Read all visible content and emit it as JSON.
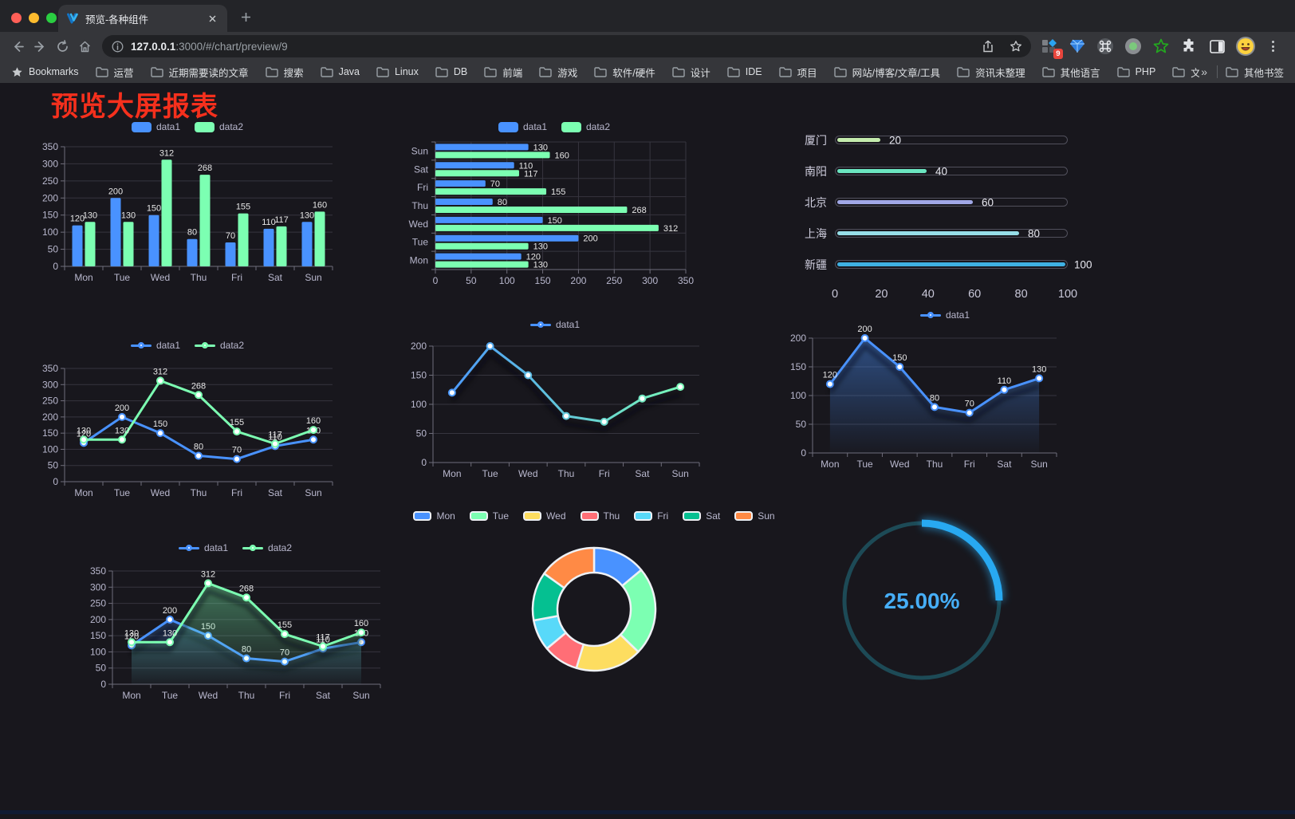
{
  "browser": {
    "tab_title": "预览-各种组件",
    "url_host": "127.0.0.1",
    "url_rest": ":3000/#/chart/preview/9",
    "extension_badge": "9",
    "bookmarks_label": "Bookmarks",
    "bookmarks": [
      "运营",
      "近期需要读的文章",
      "搜索",
      "Java",
      "Linux",
      "DB",
      "前端",
      "游戏",
      "软件/硬件",
      "设计",
      "IDE",
      "项目",
      "网站/博客/文章/工具",
      "资讯未整理",
      "其他语言",
      "PHP",
      "文件服务器"
    ],
    "overflow_glyph": "»",
    "other_bookmarks": "其他书签"
  },
  "page": {
    "title": "预览大屏报表",
    "title_color": "#f5301d"
  },
  "colors": {
    "axis_label": "#b9b8ce",
    "axis_line": "#6e6d7a",
    "grid_line": "#36353f",
    "value_label": "#e6e6e6"
  },
  "chart_data": [
    {
      "id": "bar-vertical",
      "type": "bar",
      "categories": [
        "Mon",
        "Tue",
        "Wed",
        "Thu",
        "Fri",
        "Sat",
        "Sun"
      ],
      "series": [
        {
          "name": "data1",
          "color": "#4992ff",
          "values": [
            120,
            200,
            150,
            80,
            70,
            110,
            130
          ]
        },
        {
          "name": "data2",
          "color": "#7cffb2",
          "values": [
            130,
            130,
            312,
            268,
            155,
            117,
            160
          ]
        }
      ],
      "ylim": [
        0,
        350
      ],
      "ystep": 50,
      "legend_position": "top",
      "grid": true,
      "value_labels": true
    },
    {
      "id": "bar-horizontal",
      "type": "bar",
      "orientation": "horizontal",
      "categories": [
        "Mon",
        "Tue",
        "Wed",
        "Thu",
        "Fri",
        "Sat",
        "Sun"
      ],
      "series": [
        {
          "name": "data1",
          "color": "#4992ff",
          "values": [
            120,
            200,
            150,
            80,
            70,
            110,
            130
          ]
        },
        {
          "name": "data2",
          "color": "#7cffb2",
          "values": [
            130,
            130,
            312,
            268,
            155,
            117,
            160
          ]
        }
      ],
      "xlim": [
        0,
        350
      ],
      "xstep": 50,
      "legend_position": "top",
      "grid": true,
      "value_labels": true
    },
    {
      "id": "progress",
      "type": "bar",
      "orientation": "horizontal-progress",
      "categories": [
        "厦门",
        "南阳",
        "北京",
        "上海",
        "新疆"
      ],
      "values": [
        20,
        40,
        60,
        80,
        100
      ],
      "colors": [
        "#c4ebad",
        "#6be6c1",
        "#a0a7e6",
        "#96dee8",
        "#3fb1e3"
      ],
      "xlim": [
        0,
        100
      ],
      "xticks": [
        0,
        20,
        40,
        60,
        80,
        100
      ],
      "value_labels": true
    },
    {
      "id": "line-two",
      "type": "line",
      "categories": [
        "Mon",
        "Tue",
        "Wed",
        "Thu",
        "Fri",
        "Sat",
        "Sun"
      ],
      "series": [
        {
          "name": "data1",
          "color": "#4992ff",
          "values": [
            120,
            200,
            150,
            80,
            70,
            110,
            130
          ]
        },
        {
          "name": "data2",
          "color": "#7cffb2",
          "values": [
            130,
            130,
            312,
            268,
            155,
            117,
            160
          ]
        }
      ],
      "ylim": [
        0,
        350
      ],
      "ystep": 50,
      "legend_position": "top",
      "grid": true,
      "value_labels": true
    },
    {
      "id": "line-gradient",
      "type": "line",
      "categories": [
        "Mon",
        "Tue",
        "Wed",
        "Thu",
        "Fri",
        "Sat",
        "Sun"
      ],
      "series": [
        {
          "name": "data1",
          "color": "#4992ff",
          "color_gradient": [
            "#4992ff",
            "#7cffb2"
          ],
          "values": [
            120,
            200,
            150,
            80,
            70,
            110,
            130
          ]
        }
      ],
      "ylim": [
        0,
        200
      ],
      "ystep": 50,
      "legend_position": "top",
      "grid": true,
      "value_labels": false,
      "shadow": true
    },
    {
      "id": "line-area-single",
      "type": "area",
      "categories": [
        "Mon",
        "Tue",
        "Wed",
        "Thu",
        "Fri",
        "Sat",
        "Sun"
      ],
      "series": [
        {
          "name": "data1",
          "color": "#4992ff",
          "values": [
            120,
            200,
            150,
            80,
            70,
            110,
            130
          ]
        }
      ],
      "ylim": [
        0,
        200
      ],
      "ystep": 50,
      "legend_position": "top",
      "grid": true,
      "value_labels": true,
      "shadow": true
    },
    {
      "id": "line-area-two",
      "type": "area",
      "categories": [
        "Mon",
        "Tue",
        "Wed",
        "Thu",
        "Fri",
        "Sat",
        "Sun"
      ],
      "series": [
        {
          "name": "data1",
          "color": "#4992ff",
          "values": [
            120,
            200,
            150,
            80,
            70,
            110,
            130
          ]
        },
        {
          "name": "data2",
          "color": "#7cffb2",
          "values": [
            130,
            130,
            312,
            268,
            155,
            117,
            160
          ]
        }
      ],
      "ylim": [
        0,
        350
      ],
      "ystep": 50,
      "legend_position": "top",
      "grid": true,
      "value_labels": true,
      "shadow": true
    },
    {
      "id": "pie-donut",
      "type": "pie",
      "donut": true,
      "categories": [
        "Mon",
        "Tue",
        "Wed",
        "Thu",
        "Fri",
        "Sat",
        "Sun"
      ],
      "values": [
        120,
        200,
        150,
        80,
        70,
        110,
        130
      ],
      "colors": [
        "#4992ff",
        "#7cffb2",
        "#fddd60",
        "#ff6e76",
        "#58d9f9",
        "#05c091",
        "#ff8a45"
      ],
      "legend_position": "top"
    },
    {
      "id": "gauge",
      "type": "gauge",
      "value": 25,
      "max": 100,
      "label": "25.00%",
      "color": "#28a9f1",
      "track_color": "#1d4a56",
      "label_color": "#46aef7"
    }
  ]
}
